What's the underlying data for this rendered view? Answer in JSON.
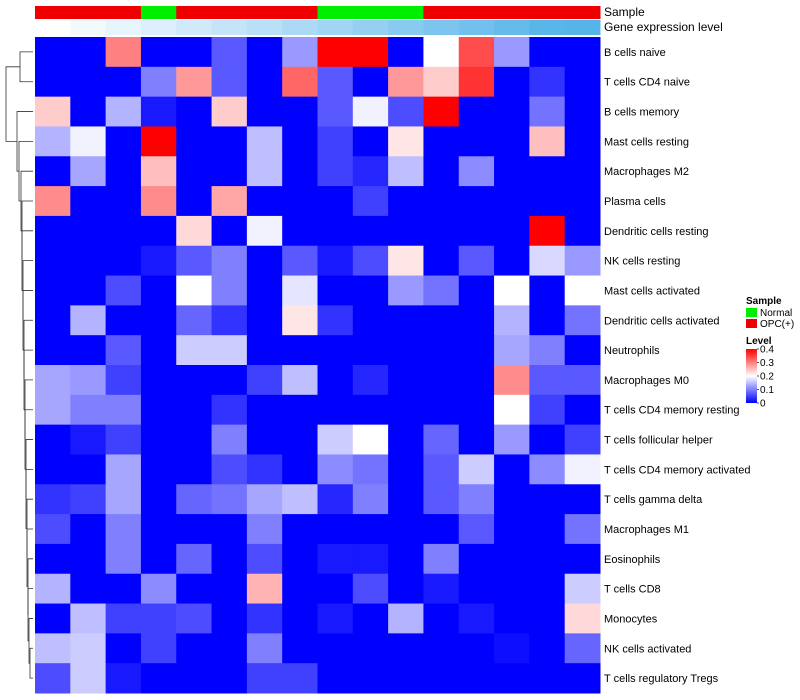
{
  "chart_data": {
    "type": "heatmap",
    "annotation_labels": {
      "sample": "Sample",
      "gene": "Gene expression level"
    },
    "rows": [
      "B cells naive",
      "T cells CD4 naive",
      "B cells memory",
      "Mast cells resting",
      "Macrophages M2",
      "Plasma cells",
      "Dendritic cells resting",
      "NK cells resting",
      "Mast cells activated",
      "Dendritic cells activated",
      "Neutrophils",
      "Macrophages M0",
      "T cells CD4 memory resting",
      "T cells follicular helper",
      "T cells CD4 memory activated",
      "T cells gamma delta",
      "Macrophages M1",
      "Eosinophils",
      "T cells CD8",
      "Monocytes",
      "NK cells activated",
      "T cells regulatory  Tregs"
    ],
    "samples": [
      "OPC(+)",
      "OPC(+)",
      "OPC(+)",
      "Normal",
      "OPC(+)",
      "OPC(+)",
      "OPC(+)",
      "OPC(+)",
      "Normal",
      "Normal",
      "Normal",
      "OPC(+)",
      "OPC(+)",
      "OPC(+)",
      "OPC(+)",
      "OPC(+)"
    ],
    "gene_expression_level": [
      0.0,
      0.07,
      0.14,
      0.21,
      0.28,
      0.35,
      0.42,
      0.49,
      0.56,
      0.63,
      0.7,
      0.77,
      0.84,
      0.91,
      0.98,
      1.0
    ],
    "values": [
      [
        0,
        0,
        0.3,
        0,
        0,
        0.07,
        0,
        0.12,
        0.4,
        0.4,
        0,
        0.2,
        0.34,
        0.12,
        0,
        0
      ],
      [
        0,
        0,
        0,
        0.1,
        0.28,
        0.07,
        0,
        0.32,
        0.07,
        0,
        0.28,
        0.24,
        0.36,
        0,
        0.04,
        0
      ],
      [
        0.24,
        0,
        0.14,
        0.02,
        0,
        0.24,
        0,
        0,
        0.07,
        0.19,
        0.06,
        0.4,
        0,
        0,
        0.09,
        0
      ],
      [
        0.14,
        0.19,
        0,
        0.4,
        0,
        0,
        0.15,
        0,
        0.05,
        0,
        0.22,
        0,
        0,
        0,
        0.25,
        0
      ],
      [
        0,
        0.13,
        0,
        0.25,
        0,
        0,
        0.15,
        0,
        0.05,
        0.03,
        0.15,
        0,
        0.11,
        0,
        0,
        0
      ],
      [
        0.29,
        0,
        0,
        0.29,
        0,
        0.27,
        0,
        0,
        0,
        0.05,
        0,
        0,
        0,
        0,
        0,
        0
      ],
      [
        0,
        0,
        0,
        0,
        0.23,
        0,
        0.19,
        0,
        0,
        0,
        0,
        0,
        0,
        0,
        0.4,
        0
      ],
      [
        0,
        0,
        0,
        0.02,
        0.07,
        0.1,
        0,
        0.07,
        0.02,
        0.06,
        0.22,
        0,
        0.07,
        0,
        0.17,
        0.12
      ],
      [
        0,
        0,
        0.06,
        0,
        0.2,
        0.1,
        0,
        0.18,
        0,
        0,
        0.12,
        0.09,
        0,
        0.2,
        0,
        0.2
      ],
      [
        0,
        0.14,
        0,
        0,
        0.08,
        0.04,
        0,
        0.22,
        0.04,
        0,
        0,
        0,
        0,
        0.14,
        0,
        0.09
      ],
      [
        0,
        0,
        0.07,
        0,
        0.16,
        0.16,
        0,
        0,
        0,
        0,
        0,
        0,
        0,
        0.13,
        0.1,
        0
      ],
      [
        0.13,
        0.12,
        0.05,
        0,
        0,
        0,
        0.05,
        0.15,
        0,
        0.03,
        0,
        0,
        0,
        0.29,
        0.07,
        0.07
      ],
      [
        0.13,
        0.1,
        0.1,
        0,
        0,
        0.04,
        0,
        0,
        0,
        0,
        0,
        0,
        0,
        0.2,
        0.05,
        0
      ],
      [
        0,
        0.02,
        0.05,
        0,
        0,
        0.1,
        0,
        0,
        0.16,
        0.2,
        0,
        0.08,
        0,
        0.12,
        0,
        0.05
      ],
      [
        0,
        0,
        0.13,
        0,
        0,
        0.06,
        0.04,
        0,
        0.11,
        0.09,
        0,
        0.07,
        0.16,
        0,
        0.11,
        0.19
      ],
      [
        0.04,
        0.05,
        0.13,
        0,
        0.08,
        0.09,
        0.13,
        0.15,
        0.03,
        0.1,
        0,
        0.07,
        0.1,
        0,
        0,
        0
      ],
      [
        0.06,
        0,
        0.1,
        0,
        0,
        0,
        0.1,
        0,
        0,
        0,
        0,
        0,
        0.07,
        0,
        0,
        0.09
      ],
      [
        0,
        0,
        0.1,
        0,
        0.08,
        0,
        0.06,
        0,
        0.02,
        0.02,
        0,
        0.1,
        0,
        0,
        0,
        0
      ],
      [
        0.14,
        0,
        0,
        0.11,
        0,
        0,
        0.26,
        0,
        0,
        0.06,
        0,
        0.02,
        0,
        0,
        0,
        0.16
      ],
      [
        0,
        0.15,
        0.05,
        0.05,
        0.06,
        0,
        0.04,
        0,
        0.02,
        0,
        0.14,
        0,
        0.02,
        0,
        0,
        0.23
      ],
      [
        0.15,
        0.16,
        0,
        0.05,
        0,
        0,
        0.1,
        0,
        0,
        0,
        0,
        0,
        0,
        0.01,
        0,
        0.08
      ],
      [
        0.06,
        0.16,
        0.02,
        0,
        0,
        0,
        0.05,
        0.05,
        0,
        0,
        0,
        0,
        0,
        0,
        0,
        0
      ]
    ],
    "legend": {
      "sample_title": "Sample",
      "sample_items": [
        {
          "label": "Normal",
          "color": "#00ee00"
        },
        {
          "label": "OPC(+)",
          "color": "#ee0000"
        }
      ],
      "level_title": "Level",
      "level_ticks": [
        "0.4",
        "0.3",
        "0.2",
        "0.1",
        "0"
      ],
      "level_range": [
        0,
        0.4
      ]
    },
    "colors": {
      "low": "#0000ff",
      "mid": "#ffffff",
      "high": "#ff0000",
      "gene_low": "#ffffff",
      "gene_high": "#56b4e9"
    }
  }
}
